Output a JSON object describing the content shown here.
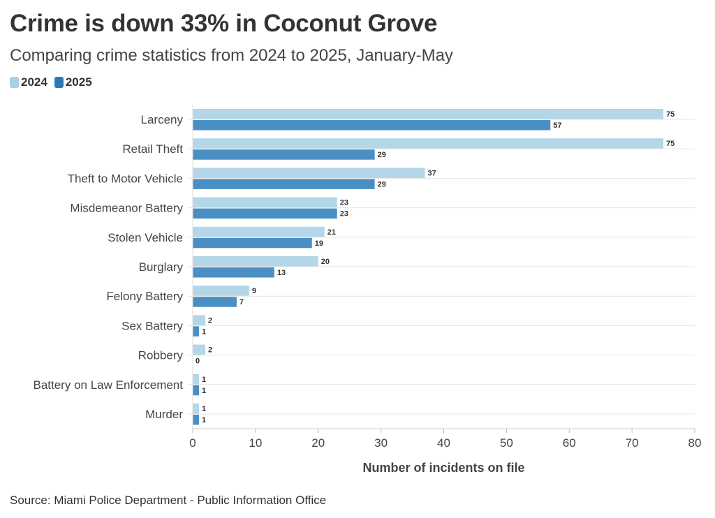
{
  "title": "Crime is down 33% in Coconut Grove",
  "subtitle": "Comparing crime statistics from 2024 to 2025, January-May",
  "source": "Source: Miami Police Department - Public Information Office",
  "chart_data": {
    "type": "bar",
    "orientation": "horizontal",
    "categories": [
      "Larceny",
      "Retail Theft",
      "Theft to Motor Vehicle",
      "Misdemeanor Battery",
      "Stolen Vehicle",
      "Burglary",
      "Felony Battery",
      "Sex Battery",
      "Robbery",
      "Battery on Law Enforcement",
      "Murder"
    ],
    "series": [
      {
        "name": "2024",
        "color": "#b3d6e8",
        "values": [
          75,
          75,
          37,
          23,
          21,
          20,
          9,
          2,
          2,
          1,
          1
        ]
      },
      {
        "name": "2025",
        "color": "#4a8fc3",
        "values": [
          57,
          29,
          29,
          23,
          19,
          13,
          7,
          1,
          0,
          1,
          1
        ]
      }
    ],
    "legend_colors": [
      "#a9d0e6",
      "#2a7ab8"
    ],
    "xlabel": "Number of incidents on file",
    "xlim": [
      0,
      80
    ],
    "xticks": [
      0,
      10,
      20,
      30,
      40,
      50,
      60,
      70,
      80
    ],
    "grid": true,
    "legend_position": "top-left"
  }
}
